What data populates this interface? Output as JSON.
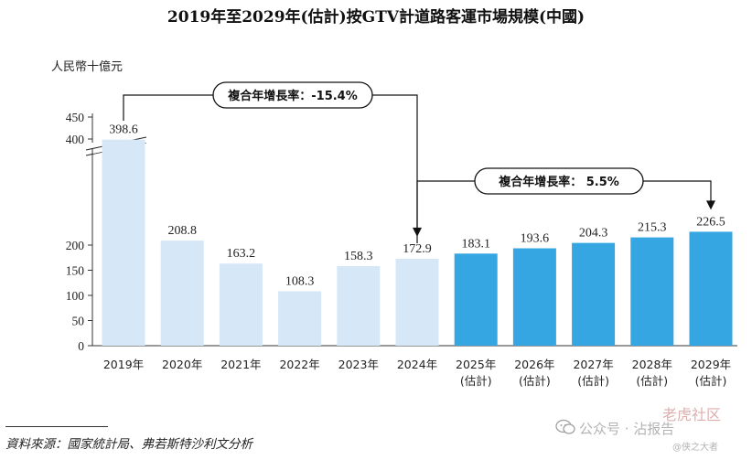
{
  "chart_data": {
    "type": "bar",
    "title": "2019年至2029年(估計)按GTV計道路客運市場規模(中國)",
    "ylabel": "人民幣十億元",
    "categories": [
      "2019年",
      "2020年",
      "2021年",
      "2022年",
      "2023年",
      "2024年",
      "2025年",
      "2026年",
      "2027年",
      "2028年",
      "2029年"
    ],
    "category_subs": [
      "",
      "",
      "",
      "",
      "",
      "",
      "(估計)",
      "(估計)",
      "(估計)",
      "(估計)",
      "(估計)"
    ],
    "values": [
      398.6,
      208.8,
      163.2,
      108.3,
      158.3,
      172.9,
      183.1,
      193.6,
      204.3,
      215.3,
      226.5
    ],
    "estimated": [
      false,
      false,
      false,
      false,
      false,
      false,
      true,
      true,
      true,
      true,
      true
    ],
    "y_ticks_lower": [
      0,
      50,
      100,
      150,
      200
    ],
    "y_ticks_upper": [
      400,
      450
    ],
    "axis_break": true,
    "ylim": [
      0,
      450
    ],
    "colors": {
      "historical": "#d6e7f7",
      "estimated": "#35a6e1"
    },
    "annotations": [
      {
        "text": "複合年增長率：-15.4%",
        "from": "2019年",
        "to": "2024年"
      },
      {
        "text": "複合年增長率： 5.5%",
        "from": "2024年",
        "to": "2029年"
      }
    ]
  },
  "source_text": "資料來源：國家統計局、弗若斯特沙利文分析",
  "watermark": {
    "account": "公众号 · 沾报告",
    "corner_a": "老虎社区",
    "corner_b": "@侠之大者"
  }
}
